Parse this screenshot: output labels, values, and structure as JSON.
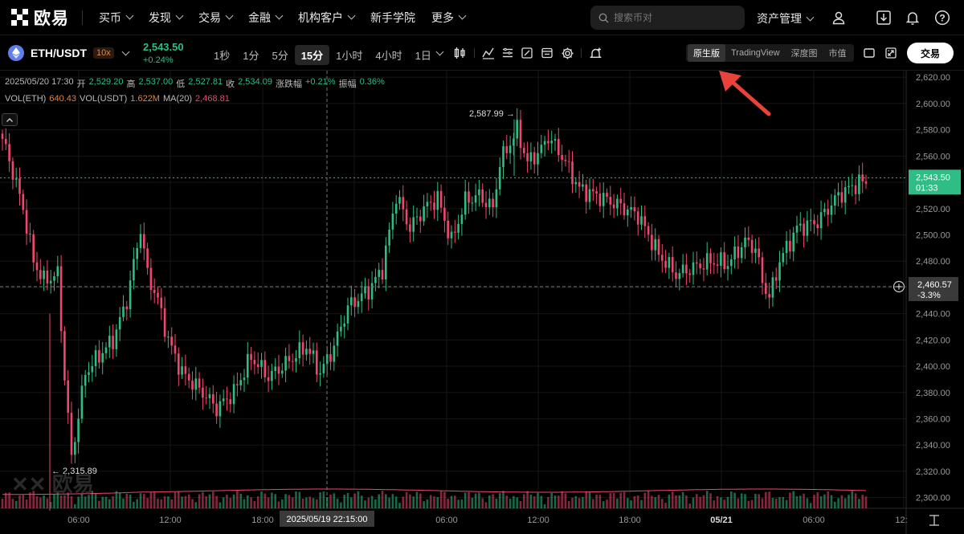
{
  "nav": {
    "logo_text": "欧易",
    "items": [
      {
        "label": "买币",
        "has_dropdown": true
      },
      {
        "label": "发现",
        "has_dropdown": true
      },
      {
        "label": "交易",
        "has_dropdown": true
      },
      {
        "label": "金融",
        "has_dropdown": true
      },
      {
        "label": "机构客户",
        "has_dropdown": true
      },
      {
        "label": "新手学院",
        "has_dropdown": false
      },
      {
        "label": "更多",
        "has_dropdown": true
      }
    ],
    "search_placeholder": "搜索币对",
    "assets_label": "资产管理",
    "icons": [
      "user-icon",
      "download-icon",
      "bell-icon",
      "help-icon"
    ]
  },
  "toolbar": {
    "pair": "ETH/USDT",
    "leverage": "10x",
    "price": "2,543.50",
    "change": "+0.24%",
    "intervals": [
      "1秒",
      "1分",
      "5分",
      "15分",
      "1小时",
      "4小时",
      "1日"
    ],
    "active_interval": "15分",
    "view_options": [
      "原生版",
      "TradingView",
      "深度图",
      "市值"
    ],
    "active_view": "原生版",
    "trade_label": "交易"
  },
  "legend": {
    "date": "2025/05/20 17:30",
    "open_label": "开",
    "open": "2,529.20",
    "high_label": "高",
    "high": "2,537.00",
    "low_label": "低",
    "low": "2,527.81",
    "close_label": "收",
    "close": "2,534.09",
    "change_label": "涨跌幅",
    "change": "+0.21%",
    "amp_label": "振幅",
    "amp": "0.36%",
    "vol_eth_label": "VOL(ETH)",
    "vol_eth": "640.43",
    "vol_usdt_label": "VOL(USDT)",
    "vol_usdt": "1.622M",
    "ma_label": "MA(20)",
    "ma": "2,468.81"
  },
  "chart_data": {
    "type": "candlestick",
    "ylim": [
      2290,
      2625
    ],
    "y_ticks": [
      "2,620.00",
      "2,600.00",
      "2,580.00",
      "2,560.00",
      "2,540.00",
      "2,520.00",
      "2,500.00",
      "2,480.00",
      "2,460.00",
      "2,440.00",
      "2,420.00",
      "2,400.00",
      "2,380.00",
      "2,360.00",
      "2,340.00",
      "2,320.00",
      "2,300.00"
    ],
    "x_ticks": [
      "06:00",
      "12:00",
      "18:00",
      "06:00",
      "12:00",
      "18:00",
      "05/21",
      "06:00",
      "12:"
    ],
    "crosshair_time": "2025/05/19 22:15:00",
    "crosshair_price": "2,460.57",
    "crosshair_pct": "-3.3%",
    "last_price": "2,543.50",
    "countdown": "01:33",
    "max_label": "2,587.99",
    "min_label": "2,315.89",
    "up_color": "#2ebd85",
    "down_color": "#ef476f",
    "anchors": [
      [
        0,
        2573
      ],
      [
        3,
        2548
      ],
      [
        6,
        2520
      ],
      [
        9,
        2480
      ],
      [
        12,
        2465
      ],
      [
        16,
        2470
      ],
      [
        18,
        2392
      ],
      [
        20,
        2330
      ],
      [
        24,
        2395
      ],
      [
        28,
        2408
      ],
      [
        32,
        2420
      ],
      [
        36,
        2450
      ],
      [
        40,
        2505
      ],
      [
        42,
        2470
      ],
      [
        45,
        2450
      ],
      [
        48,
        2420
      ],
      [
        52,
        2395
      ],
      [
        58,
        2380
      ],
      [
        62,
        2368
      ],
      [
        67,
        2380
      ],
      [
        72,
        2407
      ],
      [
        77,
        2392
      ],
      [
        82,
        2402
      ],
      [
        88,
        2415
      ],
      [
        92,
        2395
      ],
      [
        96,
        2415
      ],
      [
        100,
        2445
      ],
      [
        106,
        2458
      ],
      [
        110,
        2474
      ],
      [
        114,
        2530
      ],
      [
        118,
        2505
      ],
      [
        122,
        2520
      ],
      [
        126,
        2528
      ],
      [
        130,
        2495
      ],
      [
        134,
        2526
      ],
      [
        138,
        2530
      ],
      [
        142,
        2520
      ],
      [
        144,
        2555
      ],
      [
        146,
        2565
      ],
      [
        149,
        2580
      ],
      [
        152,
        2555
      ],
      [
        156,
        2565
      ],
      [
        158,
        2575
      ],
      [
        162,
        2560
      ],
      [
        167,
        2535
      ],
      [
        172,
        2530
      ],
      [
        178,
        2523
      ],
      [
        184,
        2515
      ],
      [
        190,
        2485
      ],
      [
        195,
        2470
      ],
      [
        200,
        2475
      ],
      [
        205,
        2480
      ],
      [
        210,
        2478
      ],
      [
        215,
        2495
      ],
      [
        218,
        2490
      ],
      [
        220,
        2465
      ],
      [
        222,
        2452
      ],
      [
        225,
        2480
      ],
      [
        230,
        2505
      ],
      [
        236,
        2510
      ],
      [
        242,
        2530
      ],
      [
        248,
        2540
      ]
    ]
  }
}
